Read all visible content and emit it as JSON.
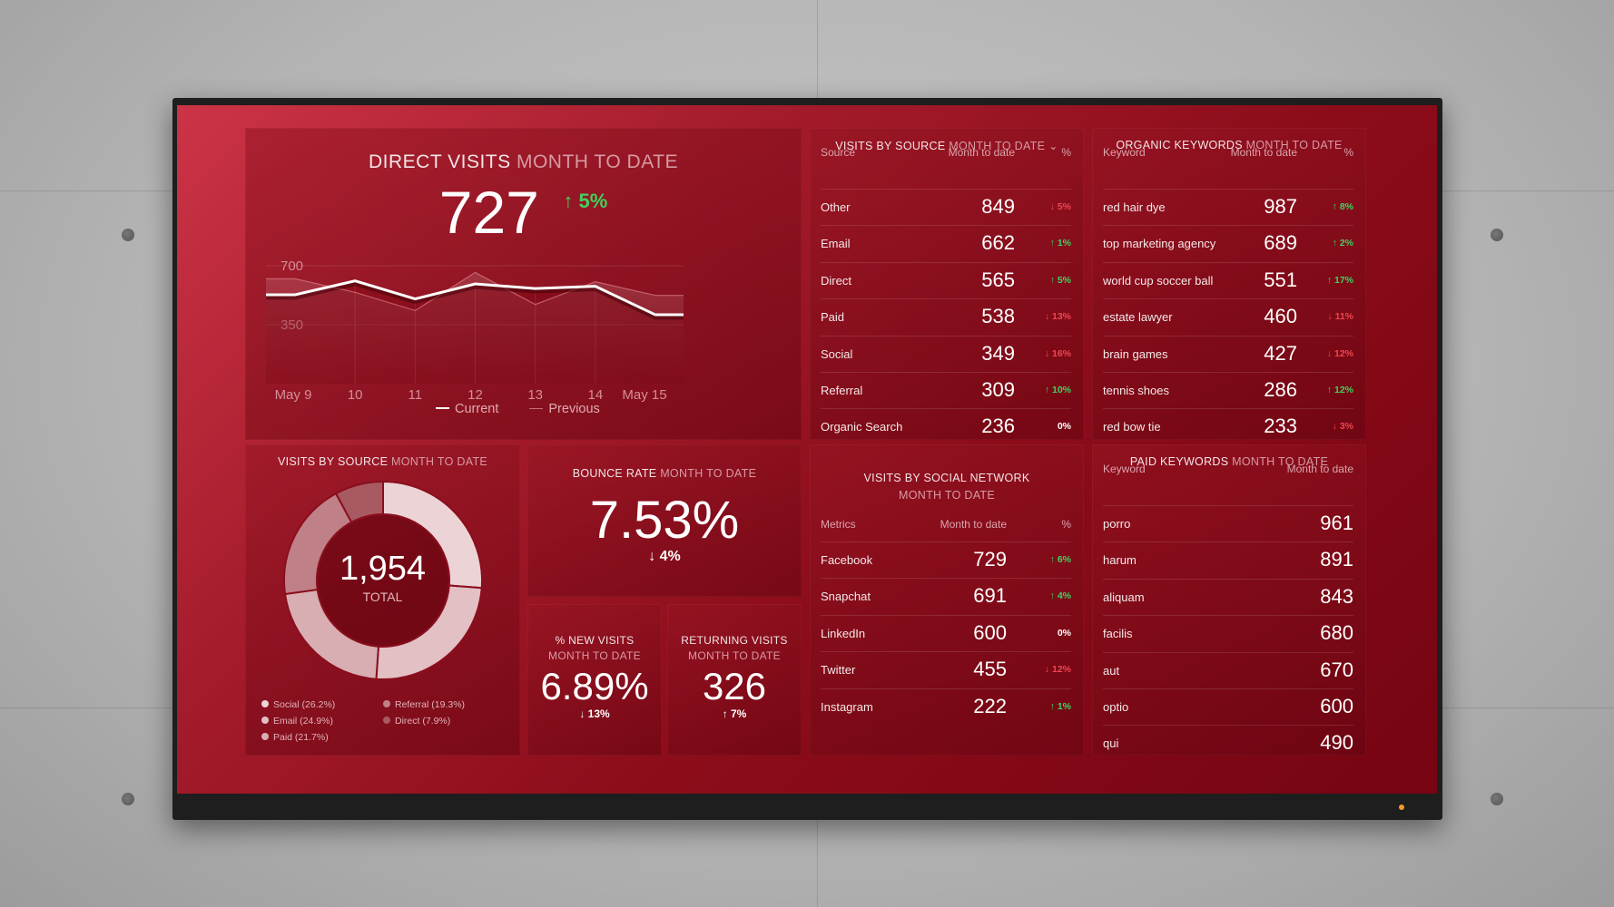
{
  "direct_visits": {
    "title": "DIRECT VISITS",
    "subtitle": "MONTH TO DATE",
    "value": "727",
    "delta": "5%",
    "delta_dir": "up"
  },
  "chart_data": {
    "type": "line",
    "title": "Direct Visits",
    "x": [
      9,
      10,
      11,
      12,
      13,
      14,
      15
    ],
    "tick_labels": [
      "May 9",
      "10",
      "11",
      "12",
      "13",
      "14",
      "May 15"
    ],
    "y_ticks": [
      "700",
      "350"
    ],
    "ylim": [
      0,
      700
    ],
    "series": [
      {
        "name": "Current",
        "values": [
          528,
          610,
          503,
          592,
          565,
          578,
          409
        ]
      },
      {
        "name": "Previous",
        "values": [
          623,
          542,
          434,
          660,
          470,
          605,
          524
        ]
      }
    ],
    "legend": "bottom"
  },
  "visits_by_source_table": {
    "title": "VISITS BY SOURCE",
    "subtitle": "MONTH TO DATE",
    "headers": [
      "Source",
      "Month to date",
      "%"
    ],
    "rows": [
      [
        "Other",
        "849",
        "5%",
        "down"
      ],
      [
        "Email",
        "662",
        "1%",
        "up"
      ],
      [
        "Direct",
        "565",
        "5%",
        "up"
      ],
      [
        "Paid",
        "538",
        "13%",
        "down"
      ],
      [
        "Social",
        "349",
        "16%",
        "down"
      ],
      [
        "Referral",
        "309",
        "10%",
        "up"
      ],
      [
        "Organic Search",
        "236",
        "0%",
        "flat"
      ]
    ]
  },
  "organic_keywords": {
    "title": "ORGANIC KEYWORDS",
    "subtitle": "MONTH TO DATE",
    "headers": [
      "Keyword",
      "Month to date",
      "%"
    ],
    "rows": [
      [
        "red hair dye",
        "987",
        "8%",
        "up"
      ],
      [
        "top marketing agency",
        "689",
        "2%",
        "up"
      ],
      [
        "world cup soccer ball",
        "551",
        "17%",
        "up"
      ],
      [
        "estate lawyer",
        "460",
        "11%",
        "down"
      ],
      [
        "brain games",
        "427",
        "12%",
        "down"
      ],
      [
        "tennis shoes",
        "286",
        "12%",
        "up"
      ],
      [
        "red bow tie",
        "233",
        "3%",
        "down"
      ]
    ]
  },
  "visits_by_source_donut": {
    "title": "VISITS BY SOURCE",
    "subtitle": "MONTH TO DATE",
    "total": "1,954",
    "total_label": "TOTAL",
    "slices": [
      {
        "label": "Social (26.2%)",
        "value": 26.2,
        "color": "#ecd3d6"
      },
      {
        "label": "Email (24.9%)",
        "value": 24.9,
        "color": "#e2c0c4"
      },
      {
        "label": "Paid (21.7%)",
        "value": 21.7,
        "color": "#d8aeb3"
      },
      {
        "label": "Referral (19.3%)",
        "value": 19.3,
        "color": "#bf8088"
      },
      {
        "label": "Direct (7.9%)",
        "value": 7.9,
        "color": "#a85a63"
      }
    ]
  },
  "bounce_rate": {
    "title": "BOUNCE RATE",
    "subtitle": "MONTH TO DATE",
    "value": "7.53%",
    "delta": "4%",
    "delta_dir": "down",
    "delta_color": "up"
  },
  "new_visits": {
    "title": "% NEW VISITS",
    "subtitle": "MONTH TO DATE",
    "value": "6.89%",
    "delta": "13%",
    "delta_dir": "down"
  },
  "returning_visits": {
    "title": "RETURNING VISITS",
    "subtitle": "MONTH TO DATE",
    "value": "326",
    "delta": "7%",
    "delta_dir": "up"
  },
  "social_network": {
    "title": "VISITS BY SOCIAL NETWORK",
    "subtitle": "MONTH TO DATE",
    "headers": [
      "Metrics",
      "Month to date",
      "%"
    ],
    "rows": [
      [
        "Facebook",
        "729",
        "6%",
        "up"
      ],
      [
        "Snapchat",
        "691",
        "4%",
        "up"
      ],
      [
        "LinkedIn",
        "600",
        "0%",
        "flat"
      ],
      [
        "Twitter",
        "455",
        "12%",
        "down"
      ],
      [
        "Instagram",
        "222",
        "1%",
        "up"
      ]
    ]
  },
  "paid_keywords": {
    "title": "PAID KEYWORDS",
    "subtitle": "MONTH TO DATE",
    "headers": [
      "Keyword",
      "Month to date"
    ],
    "rows": [
      [
        "porro",
        "961"
      ],
      [
        "harum",
        "891"
      ],
      [
        "aliquam",
        "843"
      ],
      [
        "facilis",
        "680"
      ],
      [
        "aut",
        "670"
      ],
      [
        "optio",
        "600"
      ],
      [
        "qui",
        "490"
      ]
    ]
  },
  "colors": {
    "up": "#3ed35e",
    "down": "#f0464f",
    "accent": "#a51c2c"
  }
}
